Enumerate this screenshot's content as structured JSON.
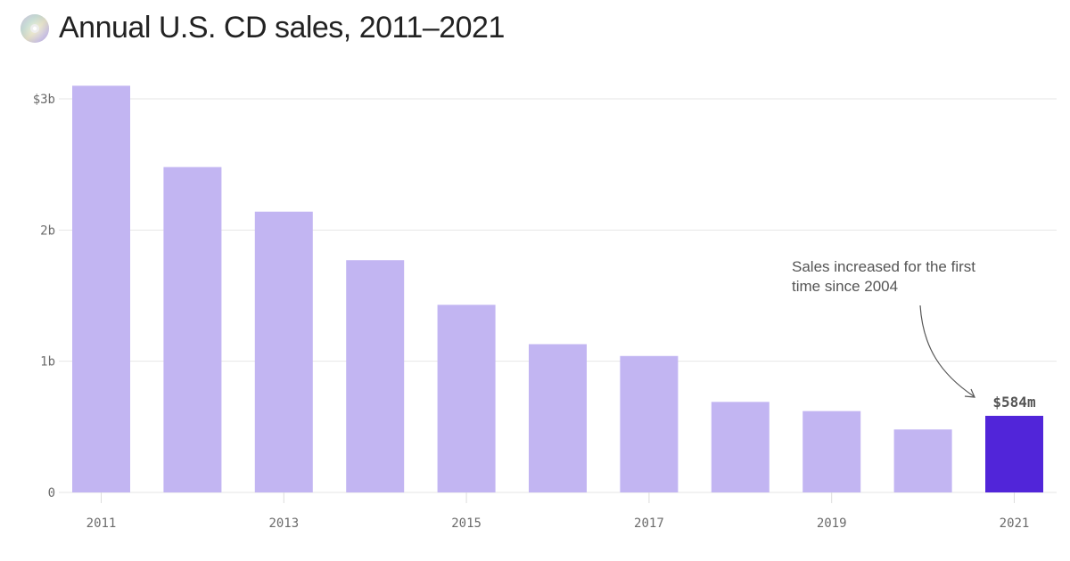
{
  "header": {
    "icon": "optical-disc-icon",
    "title": "Annual U.S. CD sales, 2011–2021"
  },
  "chart_data": {
    "type": "bar",
    "title": "Annual U.S. CD sales, 2011–2021",
    "xlabel": "",
    "ylabel": "",
    "categories": [
      "2011",
      "2012",
      "2013",
      "2014",
      "2015",
      "2016",
      "2017",
      "2018",
      "2019",
      "2020",
      "2021"
    ],
    "values_billions": [
      3.1,
      2.48,
      2.14,
      1.77,
      1.43,
      1.13,
      1.04,
      0.69,
      0.62,
      0.48,
      0.584
    ],
    "ylim": [
      0,
      3
    ],
    "y_ticks": [
      {
        "value": 0,
        "label": "0"
      },
      {
        "value": 1,
        "label": "1b"
      },
      {
        "value": 2,
        "label": "2b"
      },
      {
        "value": 3,
        "label": "$3b"
      }
    ],
    "x_tick_labels": [
      "2011",
      "2013",
      "2015",
      "2017",
      "2019",
      "2021"
    ],
    "grid": true,
    "colors": {
      "default": "#c2b5f2",
      "highlight": "#5125d9",
      "grid": "#e6e6e6",
      "tick": "#6b6b6b"
    },
    "highlight_category": "2021",
    "data_label": {
      "category": "2021",
      "text": "$584m"
    },
    "annotation": {
      "lines": [
        "Sales increased for the first",
        "time since 2004"
      ],
      "target": "2021"
    }
  }
}
